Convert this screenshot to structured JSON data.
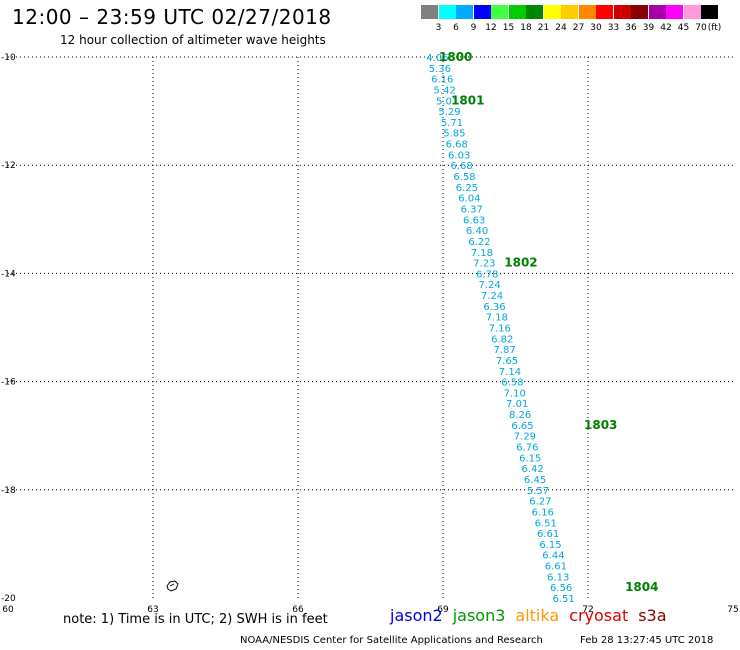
{
  "header": {
    "title": "12:00 – 23:59 UTC 02/27/2018",
    "subtitle": "12 hour collection of altimeter wave heights"
  },
  "legend": {
    "unit": "(ft)",
    "bins": [
      {
        "label": "3",
        "color": "#808080"
      },
      {
        "label": "6",
        "color": "#00ffff"
      },
      {
        "label": "9",
        "color": "#00aaff"
      },
      {
        "label": "12",
        "color": "#0000ff"
      },
      {
        "label": "15",
        "color": "#40ff40"
      },
      {
        "label": "18",
        "color": "#00cc00"
      },
      {
        "label": "21",
        "color": "#008800"
      },
      {
        "label": "24",
        "color": "#ffff00"
      },
      {
        "label": "27",
        "color": "#ffcc00"
      },
      {
        "label": "30",
        "color": "#ff8800"
      },
      {
        "label": "33",
        "color": "#ff0000"
      },
      {
        "label": "36",
        "color": "#cc0000"
      },
      {
        "label": "39",
        "color": "#880000"
      },
      {
        "label": "42",
        "color": "#aa00aa"
      },
      {
        "label": "45",
        "color": "#ff00ff"
      },
      {
        "label": "70",
        "color": "#ff99dd"
      },
      {
        "label": "",
        "color": "#000000"
      }
    ]
  },
  "map": {
    "lon_range": [
      60,
      75
    ],
    "lat_range": [
      -20,
      -10
    ],
    "lon_ticks": [
      "60",
      "63",
      "66",
      "69",
      "72",
      "75"
    ],
    "lat_ticks": [
      "-10",
      "-12",
      "-14",
      "-16",
      "-18",
      "-20"
    ],
    "track_color": "#00a8d8",
    "time_color": "#008000",
    "track": [
      {
        "lon": 68.82,
        "lat": -10.0,
        "v": "4.06"
      },
      {
        "lon": 68.87,
        "lat": -10.2,
        "v": "5.36"
      },
      {
        "lon": 68.92,
        "lat": -10.4,
        "v": "6.16"
      },
      {
        "lon": 68.97,
        "lat": -10.6,
        "v": "5.42"
      },
      {
        "lon": 69.02,
        "lat": -10.8,
        "v": "5.01"
      },
      {
        "lon": 69.07,
        "lat": -11.0,
        "v": "5.29"
      },
      {
        "lon": 69.12,
        "lat": -11.2,
        "v": "5.71"
      },
      {
        "lon": 69.17,
        "lat": -11.4,
        "v": "5.85"
      },
      {
        "lon": 69.22,
        "lat": -11.6,
        "v": "6.68"
      },
      {
        "lon": 69.27,
        "lat": -11.8,
        "v": "6.03"
      },
      {
        "lon": 69.32,
        "lat": -12.0,
        "v": "6.68"
      },
      {
        "lon": 69.38,
        "lat": -12.2,
        "v": "6.58"
      },
      {
        "lon": 69.43,
        "lat": -12.4,
        "v": "6.25"
      },
      {
        "lon": 69.48,
        "lat": -12.6,
        "v": "6.04"
      },
      {
        "lon": 69.53,
        "lat": -12.8,
        "v": "6.37"
      },
      {
        "lon": 69.58,
        "lat": -13.0,
        "v": "6.63"
      },
      {
        "lon": 69.64,
        "lat": -13.2,
        "v": "6.40"
      },
      {
        "lon": 69.69,
        "lat": -13.4,
        "v": "6.22"
      },
      {
        "lon": 69.74,
        "lat": -13.6,
        "v": "7.18"
      },
      {
        "lon": 69.79,
        "lat": -13.8,
        "v": "7.23"
      },
      {
        "lon": 69.85,
        "lat": -14.0,
        "v": "6.78"
      },
      {
        "lon": 69.9,
        "lat": -14.2,
        "v": "7.24"
      },
      {
        "lon": 69.95,
        "lat": -14.4,
        "v": "7.24"
      },
      {
        "lon": 70.0,
        "lat": -14.6,
        "v": "6.36"
      },
      {
        "lon": 70.05,
        "lat": -14.8,
        "v": "7.18"
      },
      {
        "lon": 70.11,
        "lat": -15.0,
        "v": "7.16"
      },
      {
        "lon": 70.16,
        "lat": -15.2,
        "v": "6.82"
      },
      {
        "lon": 70.21,
        "lat": -15.4,
        "v": "7.87"
      },
      {
        "lon": 70.26,
        "lat": -15.6,
        "v": "7.65"
      },
      {
        "lon": 70.32,
        "lat": -15.8,
        "v": "7.14"
      },
      {
        "lon": 70.37,
        "lat": -16.0,
        "v": "6.58"
      },
      {
        "lon": 70.42,
        "lat": -16.2,
        "v": "7.10"
      },
      {
        "lon": 70.47,
        "lat": -16.4,
        "v": "7.01"
      },
      {
        "lon": 70.53,
        "lat": -16.6,
        "v": "8.26"
      },
      {
        "lon": 70.58,
        "lat": -16.8,
        "v": "6.65"
      },
      {
        "lon": 70.63,
        "lat": -17.0,
        "v": "7.29"
      },
      {
        "lon": 70.68,
        "lat": -17.2,
        "v": "6.76"
      },
      {
        "lon": 70.74,
        "lat": -17.4,
        "v": "6.15"
      },
      {
        "lon": 70.79,
        "lat": -17.6,
        "v": "6.42"
      },
      {
        "lon": 70.84,
        "lat": -17.8,
        "v": "6.45"
      },
      {
        "lon": 70.9,
        "lat": -18.0,
        "v": "5.57"
      },
      {
        "lon": 70.95,
        "lat": -18.2,
        "v": "6.27"
      },
      {
        "lon": 71.0,
        "lat": -18.4,
        "v": "6.16"
      },
      {
        "lon": 71.06,
        "lat": -18.6,
        "v": "6.51"
      },
      {
        "lon": 71.11,
        "lat": -18.8,
        "v": "6.61"
      },
      {
        "lon": 71.16,
        "lat": -19.0,
        "v": "6.15"
      },
      {
        "lon": 71.22,
        "lat": -19.2,
        "v": "6.44"
      },
      {
        "lon": 71.27,
        "lat": -19.4,
        "v": "6.61"
      },
      {
        "lon": 71.32,
        "lat": -19.6,
        "v": "6.13"
      },
      {
        "lon": 71.38,
        "lat": -19.8,
        "v": "6.56"
      },
      {
        "lon": 71.43,
        "lat": -20.0,
        "v": "6.51"
      }
    ],
    "times": [
      {
        "lon": 69.0,
        "lat": -10.0,
        "t": "1800"
      },
      {
        "lon": 69.25,
        "lat": -10.8,
        "t": "1801"
      },
      {
        "lon": 70.35,
        "lat": -13.8,
        "t": "1802"
      },
      {
        "lon": 72.0,
        "lat": -16.8,
        "t": "1803"
      },
      {
        "lon": 72.85,
        "lat": -19.8,
        "t": "1804"
      }
    ]
  },
  "note": "note:  1) Time is in UTC;  2) SWH is in feet",
  "satellites": [
    {
      "name": "jason2",
      "color": "#0000dd"
    },
    {
      "name": "jason3",
      "color": "#009900"
    },
    {
      "name": "altika",
      "color": "#ff9900"
    },
    {
      "name": "cryosat",
      "color": "#dd0000"
    },
    {
      "name": "s3a",
      "color": "#880000"
    }
  ],
  "footer": {
    "credit": "NOAA/NESDIS Center for Satellite Applications and Research",
    "generated": "Feb 28 13:27:45 UTC 2018"
  }
}
